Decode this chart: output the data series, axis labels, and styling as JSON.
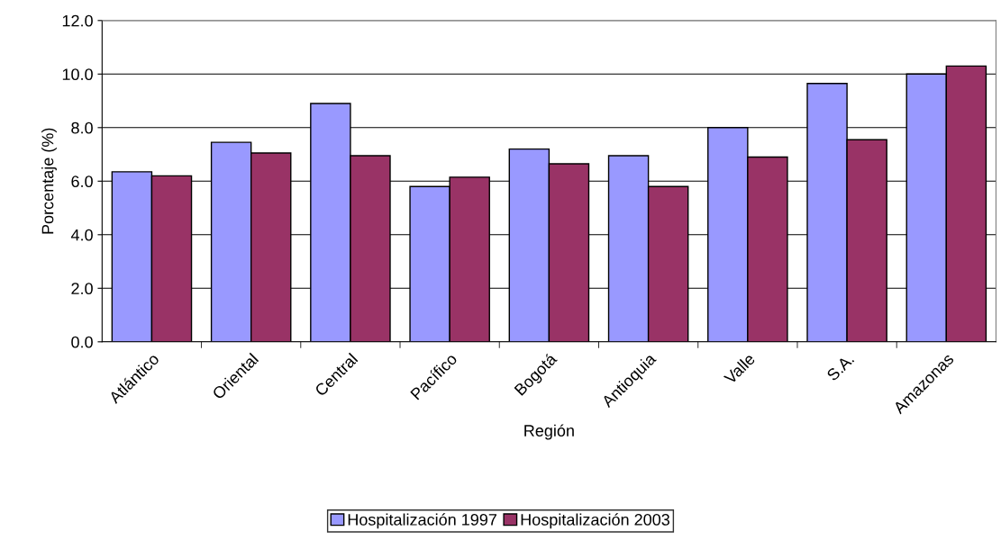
{
  "chart_data": {
    "type": "bar",
    "xlabel": "Región",
    "ylabel": "Porcentaje (%)",
    "categories": [
      "Atlántico",
      "Oriental",
      "Central",
      "Pacífico",
      "Bogotá",
      "Antioquia",
      "Valle",
      "S.A.",
      "Amazonas"
    ],
    "series": [
      {
        "name": "Hospitalización 1997",
        "color": "#9999ff",
        "values": [
          6.35,
          7.45,
          8.9,
          5.8,
          7.2,
          6.95,
          8.0,
          9.65,
          10.0
        ]
      },
      {
        "name": "Hospitalización 2003",
        "color": "#993366",
        "values": [
          6.2,
          7.05,
          6.95,
          6.15,
          6.65,
          5.8,
          6.9,
          7.55,
          10.3
        ]
      }
    ],
    "ylim": [
      0,
      12
    ],
    "yticks": [
      {
        "value": 0,
        "label": "0.0"
      },
      {
        "value": 2,
        "label": "2.0"
      },
      {
        "value": 4,
        "label": "4.0"
      },
      {
        "value": 6,
        "label": "6.0"
      },
      {
        "value": 8,
        "label": "8.0"
      },
      {
        "value": 10,
        "label": "10.0"
      },
      {
        "value": 12,
        "label": "12.0"
      }
    ],
    "grid": "y",
    "legend": "bottom"
  }
}
